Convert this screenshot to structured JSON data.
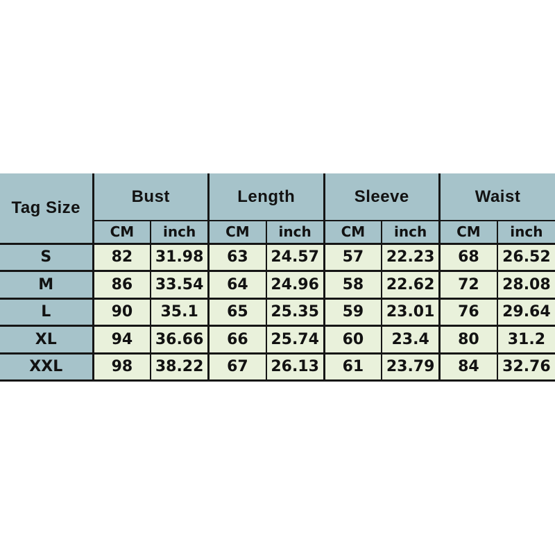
{
  "colors": {
    "page_background": "#ffffff",
    "header_cell_background": "#a6c3ca",
    "data_cell_background": "#e9f1db",
    "border": "#151515",
    "text": "#121212"
  },
  "chart_data": {
    "type": "table",
    "corner_header": "Tag Size",
    "groups": [
      "Bust",
      "Length",
      "Sleeve",
      "Waist"
    ],
    "units": [
      "CM",
      "inch"
    ],
    "columns": [
      "Tag Size",
      "Bust CM",
      "Bust inch",
      "Length CM",
      "Length inch",
      "Sleeve CM",
      "Sleeve inch",
      "Waist CM",
      "Waist inch"
    ],
    "rows": [
      {
        "tag": "S",
        "values": [
          "82",
          "31.98",
          "63",
          "24.57",
          "57",
          "22.23",
          "68",
          "26.52"
        ]
      },
      {
        "tag": "M",
        "values": [
          "86",
          "33.54",
          "64",
          "24.96",
          "58",
          "22.62",
          "72",
          "28.08"
        ]
      },
      {
        "tag": "L",
        "values": [
          "90",
          "35.1",
          "65",
          "25.35",
          "59",
          "23.01",
          "76",
          "29.64"
        ]
      },
      {
        "tag": "XL",
        "values": [
          "94",
          "36.66",
          "66",
          "25.74",
          "60",
          "23.4",
          "80",
          "31.2"
        ]
      },
      {
        "tag": "XXL",
        "values": [
          "98",
          "38.22",
          "67",
          "26.13",
          "61",
          "23.79",
          "84",
          "32.76"
        ]
      }
    ]
  }
}
